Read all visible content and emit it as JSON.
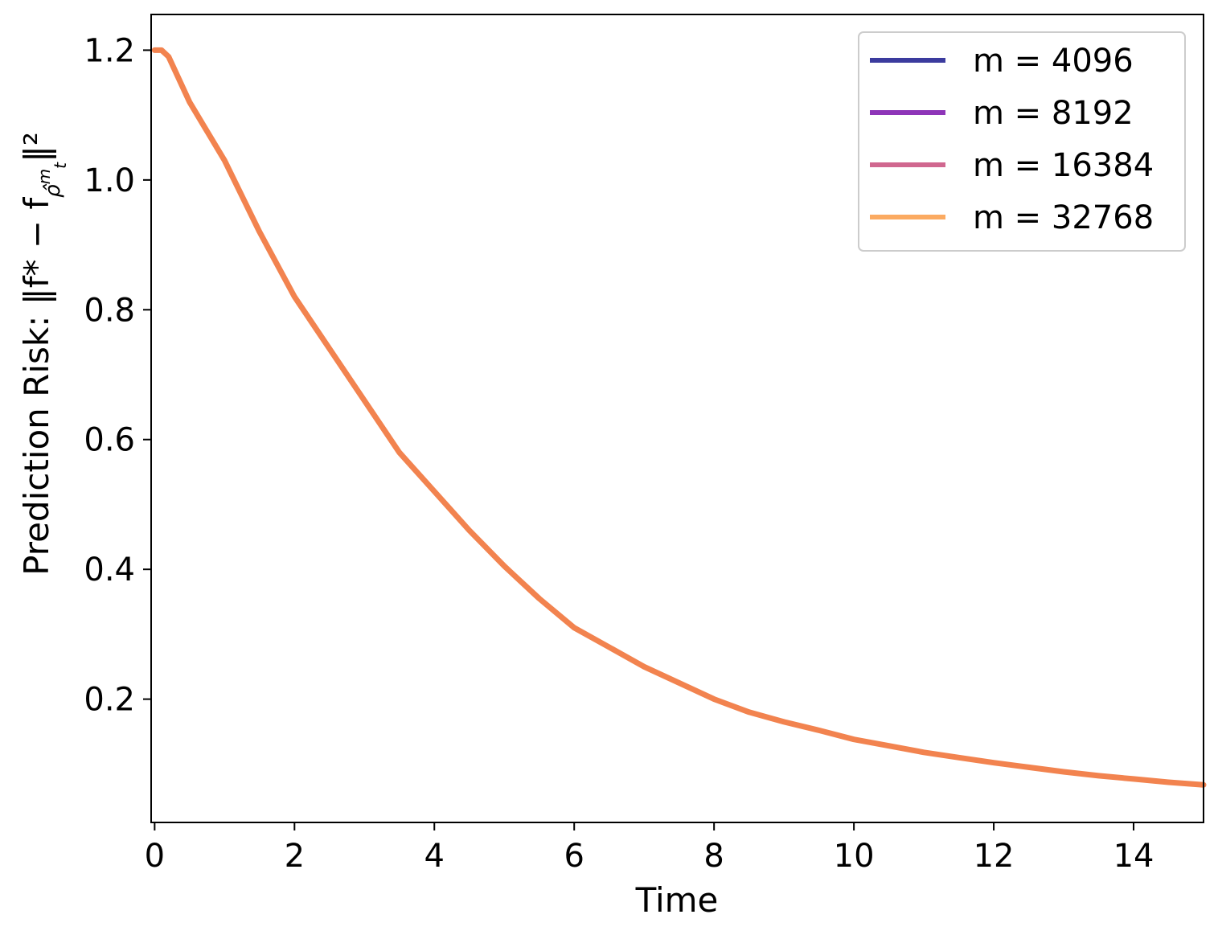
{
  "chart_data": {
    "type": "line",
    "title": "",
    "xlabel": "Time",
    "ylabel": "Prediction Risk: ‖f* − f",
    "ylabel_sub": "ρ̂",
    "ylabel_subsup": "m",
    "ylabel_subsub": "t",
    "ylabel_tail": "‖²",
    "xlim": [
      -0.05,
      15
    ],
    "ylim": [
      0.01,
      1.255
    ],
    "xticks": [
      0,
      2,
      4,
      6,
      8,
      10,
      12,
      14
    ],
    "yticks": [
      0.2,
      0.4,
      0.6,
      0.8,
      1.0,
      1.2
    ],
    "xtick_labels": [
      "0",
      "2",
      "4",
      "6",
      "8",
      "10",
      "12",
      "14"
    ],
    "ytick_labels": [
      "0.2",
      "0.4",
      "0.6",
      "0.8",
      "1.0",
      "1.2"
    ],
    "grid": false,
    "legend_position": "top-right",
    "x": [
      0,
      0.1,
      0.2,
      0.5,
      1.0,
      1.5,
      2.0,
      2.5,
      3.0,
      3.5,
      4.0,
      4.5,
      5.0,
      5.5,
      6.0,
      6.5,
      7.0,
      7.5,
      8.0,
      8.5,
      9.0,
      9.5,
      10.0,
      10.5,
      11.0,
      11.5,
      12.0,
      12.5,
      13.0,
      13.5,
      14.0,
      14.5,
      15.0
    ],
    "series": [
      {
        "name": "m = 4096",
        "color": "#3b3b9e",
        "values": [
          1.2,
          1.2,
          1.19,
          1.12,
          1.03,
          0.92,
          0.82,
          0.74,
          0.66,
          0.58,
          0.52,
          0.46,
          0.405,
          0.355,
          0.31,
          0.28,
          0.25,
          0.225,
          0.2,
          0.18,
          0.165,
          0.152,
          0.138,
          0.128,
          0.118,
          0.11,
          0.102,
          0.095,
          0.088,
          0.082,
          0.077,
          0.072,
          0.068
        ]
      },
      {
        "name": "m = 8192",
        "color": "#8e35b8",
        "values": [
          1.2,
          1.2,
          1.19,
          1.12,
          1.03,
          0.92,
          0.82,
          0.74,
          0.66,
          0.58,
          0.52,
          0.46,
          0.405,
          0.355,
          0.31,
          0.28,
          0.25,
          0.225,
          0.2,
          0.18,
          0.165,
          0.152,
          0.138,
          0.128,
          0.118,
          0.11,
          0.102,
          0.095,
          0.088,
          0.082,
          0.077,
          0.072,
          0.068
        ]
      },
      {
        "name": "m = 16384",
        "color": "#d0678f",
        "values": [
          1.2,
          1.2,
          1.19,
          1.12,
          1.03,
          0.92,
          0.82,
          0.74,
          0.66,
          0.58,
          0.52,
          0.46,
          0.405,
          0.355,
          0.31,
          0.28,
          0.25,
          0.225,
          0.2,
          0.18,
          0.165,
          0.152,
          0.138,
          0.128,
          0.118,
          0.11,
          0.102,
          0.095,
          0.088,
          0.082,
          0.077,
          0.072,
          0.068
        ]
      },
      {
        "name": "m = 32768",
        "color": "#f2834f",
        "legend_color": "#fbaa61",
        "values": [
          1.2,
          1.2,
          1.19,
          1.12,
          1.03,
          0.92,
          0.82,
          0.74,
          0.66,
          0.58,
          0.52,
          0.46,
          0.405,
          0.355,
          0.31,
          0.28,
          0.25,
          0.225,
          0.2,
          0.18,
          0.165,
          0.152,
          0.138,
          0.128,
          0.118,
          0.11,
          0.102,
          0.095,
          0.088,
          0.082,
          0.077,
          0.072,
          0.068
        ]
      }
    ]
  }
}
